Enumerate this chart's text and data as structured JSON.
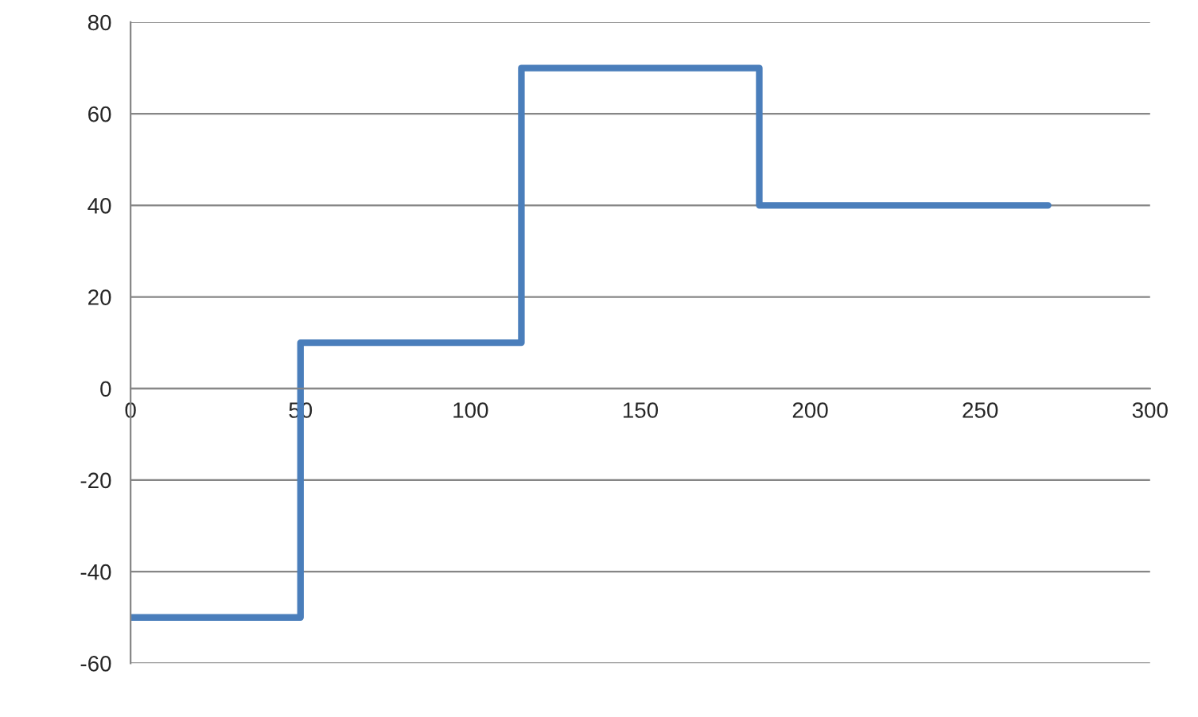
{
  "chart_data": {
    "type": "step",
    "x": [
      0,
      50,
      115,
      185,
      270
    ],
    "values": [
      -50,
      10,
      70,
      40,
      40
    ],
    "color": "#4a7ebb",
    "xlim": [
      0,
      300
    ],
    "xticks": [
      0,
      50,
      100,
      150,
      200,
      250,
      300
    ],
    "ylim": [
      -60,
      80
    ],
    "yticks": [
      -60,
      -40,
      -20,
      0,
      20,
      40,
      60,
      80
    ],
    "grid": "y",
    "marker": "none",
    "line_style": "solid"
  }
}
